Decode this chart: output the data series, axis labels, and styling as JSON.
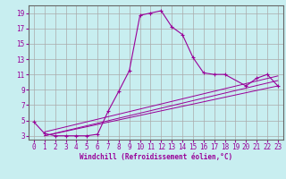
{
  "xlabel": "Windchill (Refroidissement éolien,°C)",
  "background_color": "#c8eef0",
  "line_color": "#990099",
  "grid_color": "#aaaaaa",
  "grid_color2": "#888888",
  "xlim": [
    -0.5,
    23.5
  ],
  "ylim": [
    2.5,
    20.0
  ],
  "xticks": [
    0,
    1,
    2,
    3,
    4,
    5,
    6,
    7,
    8,
    9,
    10,
    11,
    12,
    13,
    14,
    15,
    16,
    17,
    18,
    19,
    20,
    21,
    22,
    23
  ],
  "yticks": [
    3,
    5,
    7,
    9,
    11,
    13,
    15,
    17,
    19
  ],
  "main_curve": {
    "x": [
      0,
      1,
      2,
      3,
      4,
      5,
      6,
      7,
      8,
      9,
      10,
      11,
      12,
      13,
      14,
      15,
      16,
      17,
      18,
      20,
      21,
      22,
      23
    ],
    "y": [
      4.8,
      3.3,
      3.0,
      3.0,
      3.0,
      3.0,
      3.2,
      6.2,
      8.8,
      11.5,
      18.7,
      19.0,
      19.3,
      17.2,
      16.2,
      13.2,
      11.2,
      11.0,
      11.0,
      9.5,
      10.5,
      11.0,
      9.5
    ]
  },
  "diag_lines": [
    {
      "x": [
        1,
        23
      ],
      "y": [
        3.0,
        9.5
      ]
    },
    {
      "x": [
        1,
        23
      ],
      "y": [
        3.0,
        10.2
      ]
    },
    {
      "x": [
        1,
        23
      ],
      "y": [
        3.5,
        10.8
      ]
    }
  ]
}
